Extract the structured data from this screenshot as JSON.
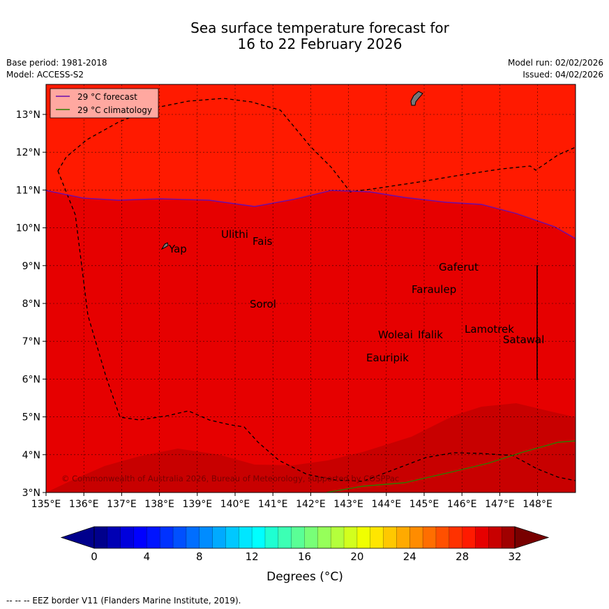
{
  "title": {
    "line1": "Sea surface temperature forecast for",
    "line2": "16 to 22 February 2026"
  },
  "meta": {
    "base_period": "Base period: 1981-2018",
    "model": "Model: ACCESS-S2",
    "model_run": "Model run: 02/02/2026",
    "issued": "Issued: 04/02/2026"
  },
  "legend": {
    "forecast": "29 °C  forecast",
    "climatology": "29 °C  climatology",
    "forecast_color": "#6a0dad",
    "climatology_color": "#2e7d00"
  },
  "map": {
    "lon_ticks": [
      "135°E",
      "136°E",
      "137°E",
      "138°E",
      "139°E",
      "140°E",
      "141°E",
      "142°E",
      "143°E",
      "144°E",
      "145°E",
      "146°E",
      "147°E",
      "148°E"
    ],
    "lat_ticks": [
      "3°N",
      "4°N",
      "5°N",
      "6°N",
      "7°N",
      "8°N",
      "9°N",
      "10°N",
      "11°N",
      "12°N",
      "13°N"
    ],
    "islands": [
      "Yap",
      "Ulithi",
      "Fais",
      "Gaferut",
      "Faraulep",
      "Sorol",
      "Lamotrek",
      "Woleai",
      "Ifalik",
      "Satawal",
      "Eauripik"
    ],
    "copyright": "© Commonwealth of Australia 2026, Bureau of Meteorology, supported by COSPPac",
    "colors": {
      "band_29_30": "#e60000",
      "band_30_31": "#ff1a00",
      "band_28_29": "#c80000"
    }
  },
  "colorbar": {
    "ticks": [
      "0",
      "4",
      "8",
      "12",
      "16",
      "20",
      "24",
      "28",
      "32"
    ],
    "label": "Degrees (°C)",
    "colors": [
      "#00008c",
      "#0000b4",
      "#0000dc",
      "#0000ff",
      "#0014ff",
      "#0032ff",
      "#0050ff",
      "#006eff",
      "#008cff",
      "#00aaff",
      "#00c8ff",
      "#00e6ff",
      "#00ffff",
      "#1effd2",
      "#3cffb4",
      "#5aff96",
      "#78ff78",
      "#96ff5a",
      "#b4ff3c",
      "#d2ff1e",
      "#f0ff00",
      "#ffe600",
      "#ffc800",
      "#ffaa00",
      "#ff8c00",
      "#ff6e00",
      "#ff5000",
      "#ff3200",
      "#ff1a00",
      "#e60000",
      "#c80000",
      "#a00000",
      "#780000"
    ]
  },
  "footnote": "--  --  -- EEZ border V11 (Flanders Marine Institute, 2019)."
}
